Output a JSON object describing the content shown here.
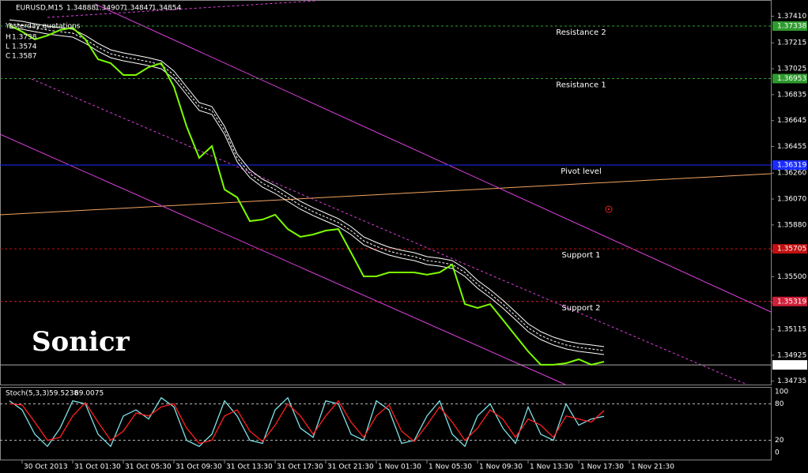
{
  "chart_data": [
    {
      "type": "line",
      "symbol": "EURUSD,M15",
      "quotes": [
        1.34888,
        1.34907,
        1.34847,
        1.34854
      ],
      "info": {
        "title": "Yesterday quotations",
        "items": [
          {
            "label": "H",
            "value": 1.3738
          },
          {
            "label": "L",
            "value": 1.3574
          },
          {
            "label": "C",
            "value": 1.3587
          }
        ]
      },
      "watermark": "Sonicr",
      "x": [
        -1,
        0,
        1,
        2,
        3,
        4,
        5,
        6,
        7,
        8,
        9,
        10,
        11,
        12,
        13,
        14,
        15,
        16,
        17,
        18,
        19,
        20,
        21,
        22,
        23,
        24,
        25,
        26,
        27,
        28,
        29,
        30,
        31,
        32,
        33,
        34,
        35,
        36,
        37,
        38,
        39,
        40,
        41,
        42,
        43,
        44,
        45,
        46
      ],
      "xlim": [
        -1.75,
        59.1875
      ],
      "xticks": [
        {
          "value": 0,
          "label": "30 Oct 2013"
        },
        {
          "value": 4,
          "label": "31 Oct 01:30"
        },
        {
          "value": 8,
          "label": "31 Oct 05:30"
        },
        {
          "value": 12,
          "label": "31 Oct 09:30"
        },
        {
          "value": 16,
          "label": "31 Oct 13:30"
        },
        {
          "value": 20,
          "label": "31 Oct 17:30"
        },
        {
          "value": 24,
          "label": "31 Oct 21:30"
        },
        {
          "value": 28,
          "label": "1 Nov 01:30"
        },
        {
          "value": 32,
          "label": "1 Nov 05:30"
        },
        {
          "value": 36,
          "label": "1 Nov 09:30"
        },
        {
          "value": 40,
          "label": "1 Nov 13:30"
        },
        {
          "value": 44,
          "label": "1 Nov 17:30"
        },
        {
          "value": 48,
          "label": "1 Nov 21:30"
        }
      ],
      "ylim": [
        1.3471,
        1.375
      ],
      "yticks": [
        {
          "value": 1.3741,
          "label": "1.37410"
        },
        1.37215,
        1.37025,
        1.36835,
        1.36645,
        1.36455,
        {
          "value": 1.3626,
          "label": "1.36260"
        },
        {
          "value": 1.3607,
          "label": "1.36070"
        },
        {
          "value": 1.3588,
          "label": "1.35880"
        },
        {
          "value": 1.3569,
          "label": "1.35690"
        },
        {
          "value": 1.355,
          "label": "1.35500"
        },
        {
          "value": 1.3531,
          "label": "1.35310"
        },
        1.35115,
        1.34925,
        1.34735
      ],
      "series": [
        {
          "color": "#7cfc00",
          "values": [
            1.37344,
            1.37297,
            1.3724,
            1.37268,
            1.37309,
            1.37326,
            1.3724,
            1.37095,
            1.37066,
            1.36979,
            1.36979,
            1.37037,
            1.37066,
            1.36892,
            1.36603,
            1.36371,
            1.36458,
            1.3614,
            1.36082,
            1.35908,
            1.3592,
            1.35955,
            1.3585,
            1.35793,
            1.3581,
            1.35839,
            1.3585,
            1.35677,
            1.35503,
            1.35503,
            1.35532,
            1.35532,
            1.35532,
            1.35515,
            1.35532,
            1.3559,
            1.353,
            1.35272,
            1.353,
            1.35185,
            1.35069,
            1.34953,
            1.34855,
            1.34855,
            1.34866,
            1.34895,
            1.34855,
            1.34878
          ]
        },
        {
          "color": "#ffffff",
          "values": [
            1.37355,
            1.37344,
            1.37326,
            1.37309,
            1.37297,
            1.37286,
            1.3724,
            1.37182,
            1.37135,
            1.37112,
            1.37095,
            1.37077,
            1.37054,
            1.36979,
            1.36863,
            1.36748,
            1.36719,
            1.36574,
            1.36371,
            1.36256,
            1.36186,
            1.3614,
            1.36082,
            1.36024,
            1.35978,
            1.35937,
            1.35897,
            1.35839,
            1.35764,
            1.35723,
            1.35688,
            1.35665,
            1.35648,
            1.35619,
            1.35607,
            1.3559,
            1.35532,
            1.35445,
            1.35376,
            1.353,
            1.35214,
            1.35127,
            1.35069,
            1.35029,
            1.35,
            1.34982,
            1.34971,
            1.34959
          ]
        }
      ],
      "levels": [
        {
          "name": "Resistance 2",
          "value": 1.37338,
          "color": "#2e9b2e"
        },
        {
          "name": "Resistance 1",
          "value": 1.36953,
          "color": "#2e9b2e"
        },
        {
          "name": "Pivot level",
          "value": 1.36319,
          "color": "#1a2cff"
        },
        {
          "name": "Support 1",
          "value": 1.35705,
          "color": "#c01010"
        },
        {
          "name": "Support 2",
          "value": 1.35319,
          "color": "#d0203a"
        }
      ]
    },
    {
      "type": "line",
      "title": "Stoch(5,3,3)",
      "x": [
        -1,
        0,
        1,
        2,
        3,
        4,
        5,
        6,
        7,
        8,
        9,
        10,
        11,
        12,
        13,
        14,
        15,
        16,
        17,
        18,
        19,
        20,
        21,
        22,
        23,
        24,
        25,
        26,
        27,
        28,
        29,
        30,
        31,
        32,
        33,
        34,
        35,
        36,
        37,
        38,
        39,
        40,
        41,
        42,
        43,
        44,
        45,
        46
      ],
      "ylim": [
        0,
        100
      ],
      "yticks": [
        0,
        20,
        80,
        100
      ],
      "series": [
        {
          "color": "#7fe3e8",
          "values": [
            85,
            70,
            30,
            10,
            40,
            85,
            80,
            30,
            10,
            60,
            70,
            55,
            90,
            75,
            20,
            10,
            30,
            85,
            60,
            20,
            15,
            70,
            90,
            40,
            25,
            85,
            80,
            30,
            20,
            85,
            70,
            15,
            20,
            60,
            85,
            30,
            10,
            60,
            80,
            40,
            15,
            75,
            30,
            20,
            80,
            45,
            55,
            59.5238
          ]
        },
        {
          "color": "#ff2020",
          "values": [
            80,
            78,
            50,
            20,
            25,
            60,
            82,
            50,
            20,
            35,
            65,
            60,
            75,
            80,
            40,
            15,
            20,
            60,
            70,
            35,
            18,
            45,
            80,
            60,
            30,
            60,
            85,
            50,
            25,
            60,
            78,
            35,
            18,
            45,
            75,
            50,
            20,
            40,
            70,
            55,
            25,
            55,
            45,
            25,
            60,
            55,
            50,
            69.0075
          ]
        }
      ]
    }
  ]
}
